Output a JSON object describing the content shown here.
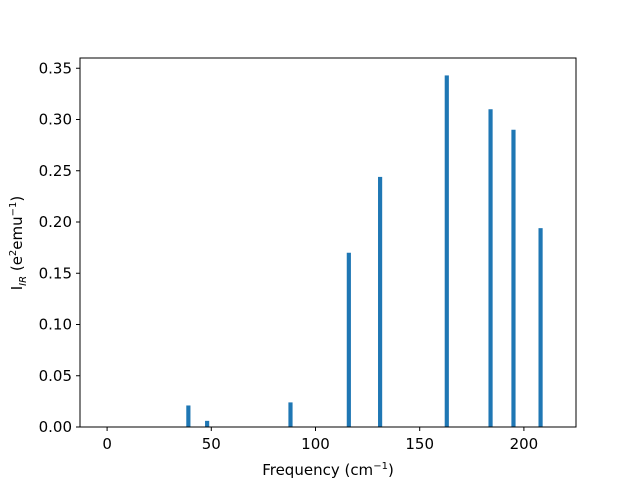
{
  "chart_data": {
    "type": "bar",
    "xlabel": "Frequency (cm",
    "xlabel_sup": "−1",
    "xlabel_end": ")",
    "ylabel_main": "I",
    "ylabel_sub": "IR",
    "ylabel_paren": " (e",
    "ylabel_sup1": "2",
    "ylabel_mid": "emu",
    "ylabel_sup2": "−1",
    "ylabel_end": ")",
    "xlim": [
      -13,
      225
    ],
    "ylim": [
      0,
      0.36
    ],
    "x_ticks": [
      0,
      50,
      100,
      150,
      200
    ],
    "x_tick_labels": [
      "0",
      "50",
      "100",
      "150",
      "200"
    ],
    "y_ticks": [
      0.0,
      0.05,
      0.1,
      0.15,
      0.2,
      0.25,
      0.3,
      0.35
    ],
    "y_tick_labels": [
      "0.00",
      "0.05",
      "0.10",
      "0.15",
      "0.20",
      "0.25",
      "0.30",
      "0.35"
    ],
    "bar_width": 2,
    "color": "#1f77b4",
    "x": [
      39,
      48,
      88,
      116,
      131,
      163,
      184,
      195,
      208
    ],
    "values": [
      0.021,
      0.006,
      0.024,
      0.17,
      0.244,
      0.343,
      0.31,
      0.29,
      0.194
    ],
    "grid": false,
    "legend": false
  }
}
